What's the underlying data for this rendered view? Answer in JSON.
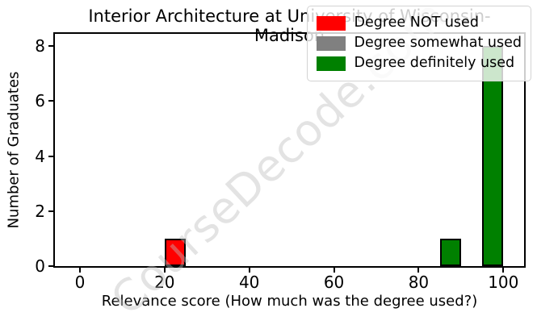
{
  "figure": {
    "watermark": "CourseDecode.com"
  },
  "chart_data": {
    "type": "bar",
    "title": "Interior Architecture at University of Wisconsin-Madison",
    "xlabel": "Relevance score (How much was the degree used?)",
    "ylabel": "Number of Graduates",
    "xlim": [
      -5.9,
      104.9
    ],
    "ylim": [
      0,
      8.44
    ],
    "xticks": [
      0,
      20,
      40,
      60,
      80,
      100
    ],
    "yticks": [
      0,
      2,
      4,
      6,
      8
    ],
    "grid": false,
    "legend_position": "upper right",
    "bin_width": 5,
    "bars": [
      {
        "x_start": 20,
        "x_end": 25,
        "count": 1,
        "category": "Degree NOT used",
        "color": "#ff0000"
      },
      {
        "x_start": 85,
        "x_end": 90,
        "count": 1,
        "category": "Degree definitely used",
        "color": "#008000"
      },
      {
        "x_start": 95,
        "x_end": 100,
        "count": 8,
        "category": "Degree definitely used",
        "color": "#008000"
      }
    ],
    "legend": [
      {
        "label": "Degree NOT used",
        "color": "#ff0000"
      },
      {
        "label": "Degree somewhat used",
        "color": "#808080"
      },
      {
        "label": "Degree definitely used",
        "color": "#008000"
      }
    ],
    "colors": {
      "bar_edge": "#000000",
      "text": "#000000",
      "watermark": "#bdbdbd",
      "background": "#ffffff"
    }
  }
}
